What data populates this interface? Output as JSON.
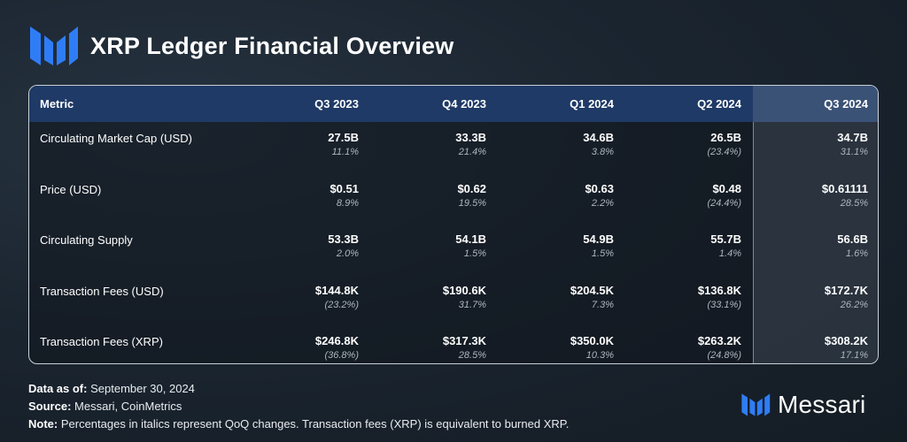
{
  "title": "XRP Ledger Financial Overview",
  "logo_icon": "messari-m-logo-icon",
  "accent_color": "#2f7df6",
  "header_color": "#1f3a66",
  "table": {
    "columns": [
      "Metric",
      "Q3 2023",
      "Q4 2023",
      "Q1 2024",
      "Q2 2024",
      "Q3 2024"
    ],
    "highlighted_column": "Q3 2024",
    "rows": [
      {
        "metric": "Circulating Market Cap (USD)",
        "values": [
          "27.5B",
          "33.3B",
          "34.6B",
          "26.5B",
          "34.7B"
        ],
        "changes": [
          "11.1%",
          "21.4%",
          "3.8%",
          "(23.4%)",
          "31.1%"
        ]
      },
      {
        "metric": "Price (USD)",
        "values": [
          "$0.51",
          "$0.62",
          "$0.63",
          "$0.48",
          "$0.61111"
        ],
        "changes": [
          "8.9%",
          "19.5%",
          "2.2%",
          "(24.4%)",
          "28.5%"
        ]
      },
      {
        "metric": "Circulating Supply",
        "values": [
          "53.3B",
          "54.1B",
          "54.9B",
          "55.7B",
          "56.6B"
        ],
        "changes": [
          "2.0%",
          "1.5%",
          "1.5%",
          "1.4%",
          "1.6%"
        ]
      },
      {
        "metric": "Transaction Fees (USD)",
        "values": [
          "$144.8K",
          "$190.6K",
          "$204.5K",
          "$136.8K",
          "$172.7K"
        ],
        "changes": [
          "(23.2%)",
          "31.7%",
          "7.3%",
          "(33.1%)",
          "26.2%"
        ]
      },
      {
        "metric": "Transaction Fees (XRP)",
        "values": [
          "$246.8K",
          "$317.3K",
          "$350.0K",
          "$263.2K",
          "$308.2K"
        ],
        "changes": [
          "(36.8%)",
          "28.5%",
          "10.3%",
          "(24.8%)",
          "17.1%"
        ]
      }
    ]
  },
  "footer": {
    "data_as_of_label": "Data as of:",
    "data_as_of": "September 30, 2024",
    "source_label": "Source:",
    "source": "Messari, CoinMetrics",
    "note_label": "Note:",
    "note": "Percentages in italics represent QoQ changes. Transaction fees (XRP) is equivalent to burned XRP."
  },
  "brand": {
    "name": "Messari",
    "icon": "messari-m-logo-icon"
  }
}
